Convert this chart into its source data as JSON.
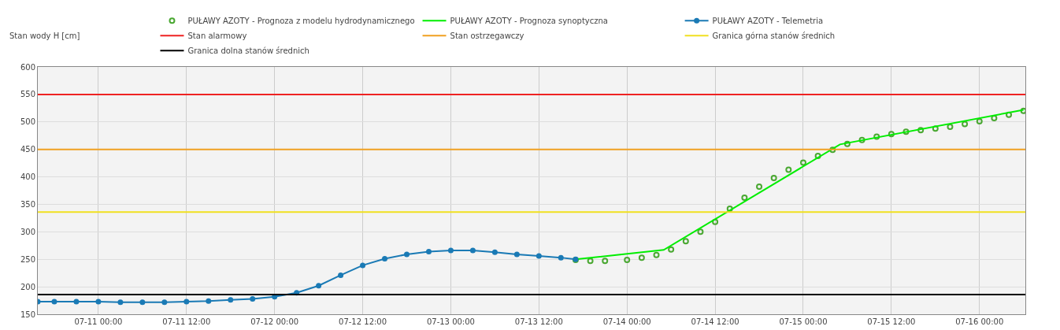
{
  "chart_data": {
    "type": "line",
    "ylabel": "Stan wody H [cm]",
    "xlim": [
      "--07-10T15:45",
      "--07-16T06:15"
    ],
    "xticks": [
      {
        "value": "--07-11T00:00",
        "label": "07-11 00:00"
      },
      {
        "value": "--07-11T12:00",
        "label": "07-11 12:00"
      },
      {
        "value": "--07-12T00:00",
        "label": "07-12 00:00"
      },
      {
        "value": "--07-12T12:00",
        "label": "07-12 12:00"
      },
      {
        "value": "--07-13T00:00",
        "label": "07-13 00:00"
      },
      {
        "value": "--07-13T12:00",
        "label": "07-13 12:00"
      },
      {
        "value": "--07-14T00:00",
        "label": "07-14 00:00"
      },
      {
        "value": "--07-14T12:00",
        "label": "07-14 12:00"
      },
      {
        "value": "--07-15T00:00",
        "label": "07-15 00:00"
      },
      {
        "value": "--07-15T12:00",
        "label": "07-15 12:00"
      },
      {
        "value": "--07-16T00:00",
        "label": "07-16 00:00"
      }
    ],
    "ylim": [
      150,
      600
    ],
    "yticks": [
      150,
      200,
      250,
      300,
      350,
      400,
      450,
      500,
      550,
      600
    ],
    "grid": true,
    "legend": "top",
    "series": [
      {
        "name": "PUŁAWY AZOTY - Prognoza z modelu hydrodynamicznego",
        "color": "#4aa832",
        "type": "scatter",
        "marker": "circle",
        "x": [
          "--07-13T17:00",
          "--07-13T19:00",
          "--07-13T21:00",
          "--07-14T00:00",
          "--07-14T02:00",
          "--07-14T04:00",
          "--07-14T06:00",
          "--07-14T08:00",
          "--07-14T10:00",
          "--07-14T12:00",
          "--07-14T14:00",
          "--07-14T16:00",
          "--07-14T18:00",
          "--07-14T20:00",
          "--07-14T22:00",
          "--07-15T00:00",
          "--07-15T02:00",
          "--07-15T04:00",
          "--07-15T06:00",
          "--07-15T08:00",
          "--07-15T10:00",
          "--07-15T12:00",
          "--07-15T14:00",
          "--07-15T16:00",
          "--07-15T18:00",
          "--07-15T20:00",
          "--07-15T22:00",
          "--07-16T00:00",
          "--07-16T02:00",
          "--07-16T04:00",
          "--07-16T06:00"
        ],
        "values": [
          249,
          247,
          247,
          249,
          253,
          258,
          268,
          283,
          300,
          318,
          342,
          362,
          382,
          398,
          413,
          426,
          438,
          449,
          460,
          467,
          473,
          478,
          482,
          485,
          488,
          491,
          496,
          501,
          507,
          513,
          520
        ]
      },
      {
        "name": "PUŁAWY AZOTY - Prognoza synoptyczna",
        "color": "#00ee00",
        "marker": "none",
        "x": [
          "--07-13T17:00",
          "--07-14T05:00",
          "--07-15T05:00",
          "--07-16T06:00"
        ],
        "values": [
          250,
          267,
          459,
          522
        ]
      },
      {
        "name": "PUŁAWY AZOTY - Telemetria",
        "color": "#1a7ab5",
        "marker": "circle",
        "x": [
          "--07-10T15:45",
          "--07-10T18:00",
          "--07-10T21:00",
          "--07-11T00:00",
          "--07-11T03:00",
          "--07-11T06:00",
          "--07-11T09:00",
          "--07-11T12:00",
          "--07-11T15:00",
          "--07-11T18:00",
          "--07-11T21:00",
          "--07-12T00:00",
          "--07-12T03:00",
          "--07-12T06:00",
          "--07-12T09:00",
          "--07-12T12:00",
          "--07-12T15:00",
          "--07-12T18:00",
          "--07-12T21:00",
          "--07-13T00:00",
          "--07-13T03:00",
          "--07-13T06:00",
          "--07-13T09:00",
          "--07-13T12:00",
          "--07-13T15:00",
          "--07-13T17:00"
        ],
        "values": [
          173,
          173,
          173,
          173,
          172,
          172,
          172,
          173,
          174,
          176,
          178,
          182,
          189,
          202,
          221,
          239,
          251,
          259,
          264,
          266,
          266,
          263,
          259,
          256,
          253,
          250
        ]
      }
    ],
    "ref_lines": [
      {
        "axis": "y",
        "value": 550,
        "label": "Stan alarmowy",
        "color": "#ee2222"
      },
      {
        "axis": "y",
        "value": 450,
        "label": "Stan ostrzegawczy",
        "color": "#f0a020"
      },
      {
        "axis": "y",
        "value": 336,
        "label": "Granica górna stanów średnich",
        "color": "#f0e020"
      },
      {
        "axis": "y",
        "value": 186,
        "label": "Granica dolna stanów średnich",
        "color": "#000000"
      }
    ]
  }
}
